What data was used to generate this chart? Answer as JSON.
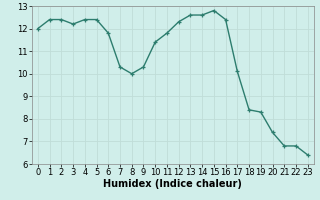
{
  "xlabel": "Humidex (Indice chaleur)",
  "x": [
    0,
    1,
    2,
    3,
    4,
    5,
    6,
    7,
    8,
    9,
    10,
    11,
    12,
    13,
    14,
    15,
    16,
    17,
    18,
    19,
    20,
    21,
    22,
    23
  ],
  "y": [
    12.0,
    12.4,
    12.4,
    12.2,
    12.4,
    12.4,
    11.8,
    10.3,
    10.0,
    10.3,
    11.4,
    11.8,
    12.3,
    12.6,
    12.6,
    12.8,
    12.4,
    10.1,
    8.4,
    8.3,
    7.4,
    6.8,
    6.8,
    6.4
  ],
  "line_color": "#2d7d6e",
  "bg_color": "#d0eeea",
  "grid_color": "#c0ddd8",
  "xlim": [
    -0.5,
    23.5
  ],
  "ylim": [
    6,
    13
  ],
  "yticks": [
    6,
    7,
    8,
    9,
    10,
    11,
    12,
    13
  ],
  "xticks": [
    0,
    1,
    2,
    3,
    4,
    5,
    6,
    7,
    8,
    9,
    10,
    11,
    12,
    13,
    14,
    15,
    16,
    17,
    18,
    19,
    20,
    21,
    22,
    23
  ],
  "marker": "+",
  "markersize": 3.5,
  "linewidth": 1.0,
  "xlabel_fontsize": 7,
  "tick_fontsize": 6
}
